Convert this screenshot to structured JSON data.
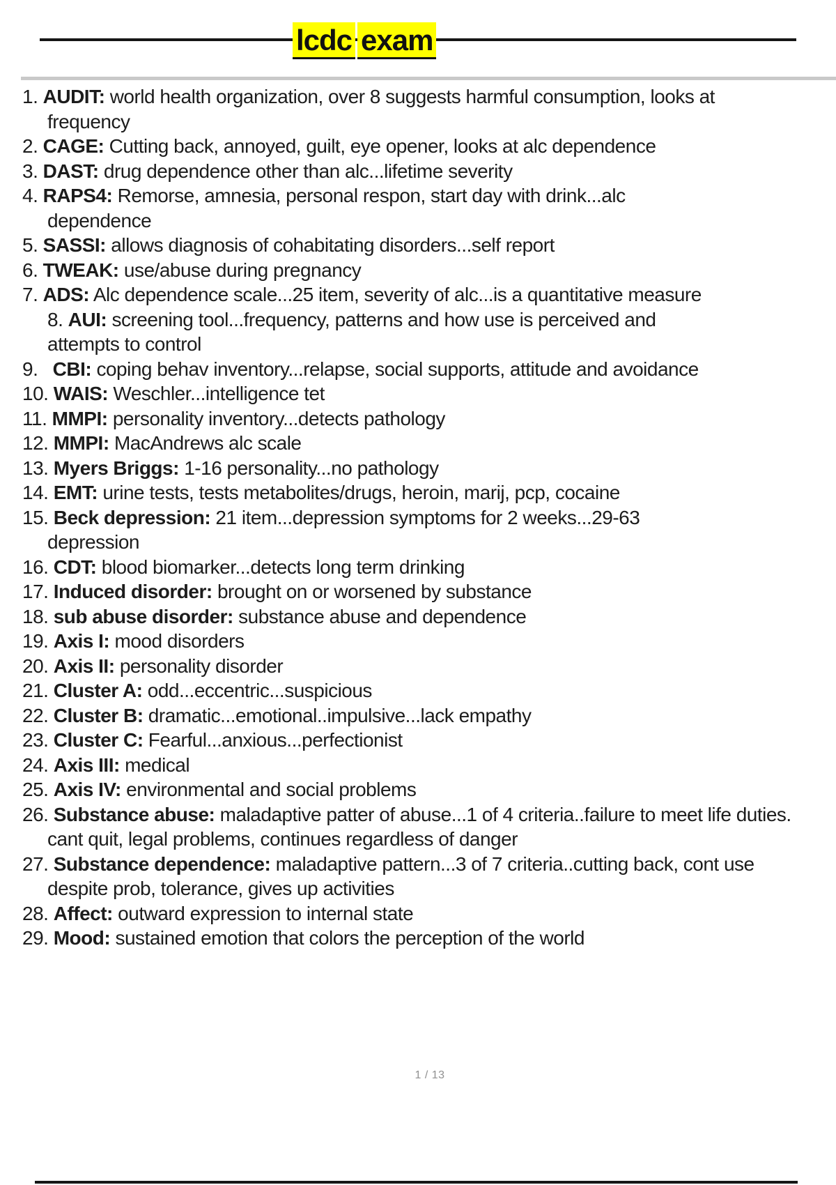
{
  "page": {
    "title": "lcdc exam",
    "title_words": [
      "lcdc",
      "exam"
    ],
    "page_number": "1 / 13"
  },
  "colors": {
    "highlight": "#ffff00",
    "text": "#1c1c1c",
    "rule": "#161616",
    "divider": "#c9c9c9",
    "page_number_gray": "#909090"
  },
  "list": {
    "items": [
      {
        "num": "1.",
        "term": "AUDIT:",
        "desc": "world health organization, over 8 suggests harmful consumption, looks at frequency"
      },
      {
        "num": "2.",
        "term": "CAGE:",
        "desc": "Cutting back, annoyed, guilt, eye opener, looks at alc dependence"
      },
      {
        "num": "3.",
        "term": "DAST:",
        "desc": "drug dependence other than alc...lifetime severity"
      },
      {
        "num": "4.",
        "term": "RAPS4:",
        "desc": "Remorse, amnesia, personal respon, start day with drink...alc dependence"
      },
      {
        "num": "5.",
        "term": "SASSI:",
        "desc": "allows diagnosis of cohabitating disorders...self report"
      },
      {
        "num": "6.",
        "term": "TWEAK:",
        "desc": "use/abuse during pregnancy"
      },
      {
        "num": "7.",
        "term": "ADS:",
        "desc": "Alc dependence scale...25 item, severity of alc...is a quantitative measure"
      },
      {
        "num": "8.",
        "term": "AUI:",
        "desc": "screening tool...frequency, patterns and how use is perceived and attempts to control"
      },
      {
        "num": "9.",
        "term": "CBI:",
        "desc": "coping behav inventory...relapse, social supports, attitude and avoidance"
      },
      {
        "num": "10.",
        "term": "WAIS:",
        "desc": "Weschler...intelligence tet"
      },
      {
        "num": "11.",
        "term": "MMPI:",
        "desc": "personality inventory...detects pathology"
      },
      {
        "num": "12.",
        "term": "MMPI:",
        "desc": "MacAndrews alc scale"
      },
      {
        "num": "13.",
        "term": "Myers Briggs:",
        "desc": "1-16 personality...no pathology"
      },
      {
        "num": "14.",
        "term": "EMT:",
        "desc": "urine tests, tests metabolites/drugs, heroin, marij, pcp, cocaine"
      },
      {
        "num": "15.",
        "term": "Beck depression:",
        "desc": "21 item...depression symptoms for 2 weeks...29-63 depression"
      },
      {
        "num": "16.",
        "term": "CDT:",
        "desc": "blood biomarker...detects long term drinking"
      },
      {
        "num": "17.",
        "term": "Induced disorder:",
        "desc": "brought on or worsened by substance"
      },
      {
        "num": "18.",
        "term": "sub abuse disorder:",
        "desc": "substance abuse and dependence"
      },
      {
        "num": "19.",
        "term": "Axis I:",
        "desc": "mood disorders"
      },
      {
        "num": "20.",
        "term": "Axis II:",
        "desc": "personality disorder"
      },
      {
        "num": "21.",
        "term": "Cluster A:",
        "desc": "odd...eccentric...suspicious"
      },
      {
        "num": "22.",
        "term": "Cluster B:",
        "desc": "dramatic...emotional..impulsive...lack empathy"
      },
      {
        "num": "23.",
        "term": "Cluster C:",
        "desc": "Fearful...anxious...perfectionist"
      },
      {
        "num": "24.",
        "term": "Axis III:",
        "desc": "medical"
      },
      {
        "num": "25.",
        "term": "Axis IV:",
        "desc": "environmental and social problems"
      },
      {
        "num": "26.",
        "term": "Substance abuse:",
        "desc": "maladaptive patter of abuse...1 of 4 criteria..failure to meet life duties. cant quit, legal problems, continues regardless of danger"
      },
      {
        "num": "27.",
        "term": "Substance dependence:",
        "desc": "maladaptive pattern...3 of 7 criteria..cutting back, cont use despite prob, tolerance, gives up activities"
      },
      {
        "num": "28.",
        "term": "Affect:",
        "desc": "outward expression to internal state"
      },
      {
        "num": "29.",
        "term": "Mood:",
        "desc": "sustained emotion that colors the perception of the world"
      }
    ]
  }
}
